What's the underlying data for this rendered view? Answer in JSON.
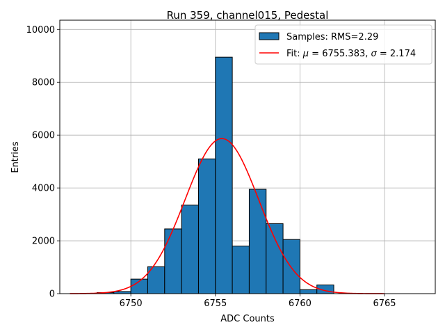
{
  "chart_data": {
    "type": "bar",
    "title": "Run 359, channel015, Pedestal",
    "xlabel": "ADC Counts",
    "ylabel": "Entries",
    "xlim": [
      6745.8,
      6768.0
    ],
    "ylim": [
      0,
      10350
    ],
    "grid": true,
    "x_ticks": [
      6750,
      6755,
      6760,
      6765
    ],
    "y_ticks": [
      0,
      2000,
      4000,
      6000,
      8000,
      10000
    ],
    "x_tick_labels": [
      "6750",
      "6755",
      "6760",
      "6765"
    ],
    "y_tick_labels": [
      "0",
      "2000",
      "4000",
      "6000",
      "8000",
      "10000"
    ],
    "histogram": {
      "name": "Samples: RMS=2.29",
      "color": "#1f77b4",
      "edge_color": "#000000",
      "bin_edges": [
        6748,
        6749,
        6750,
        6751,
        6752,
        6753,
        6754,
        6755,
        6756,
        6757,
        6758,
        6759,
        6760,
        6761,
        6762
      ],
      "counts": [
        40,
        80,
        550,
        1020,
        2450,
        3350,
        5100,
        8950,
        1800,
        3950,
        2650,
        2050,
        150,
        330
      ]
    },
    "fit": {
      "name": "Fit: μ = 6755.383, σ = 2.174",
      "legend_label_prefix": "Fit: ",
      "mu_symbol": "μ",
      "sigma_symbol": "σ",
      "mu_text": " = 6755.383, ",
      "sigma_text": " = 2.174",
      "color": "#ff0000",
      "mu": 6755.383,
      "sigma": 2.174,
      "amplitude": 5870,
      "x_range": [
        6746.4,
        6765.0
      ]
    },
    "legend_position": "top-right"
  }
}
